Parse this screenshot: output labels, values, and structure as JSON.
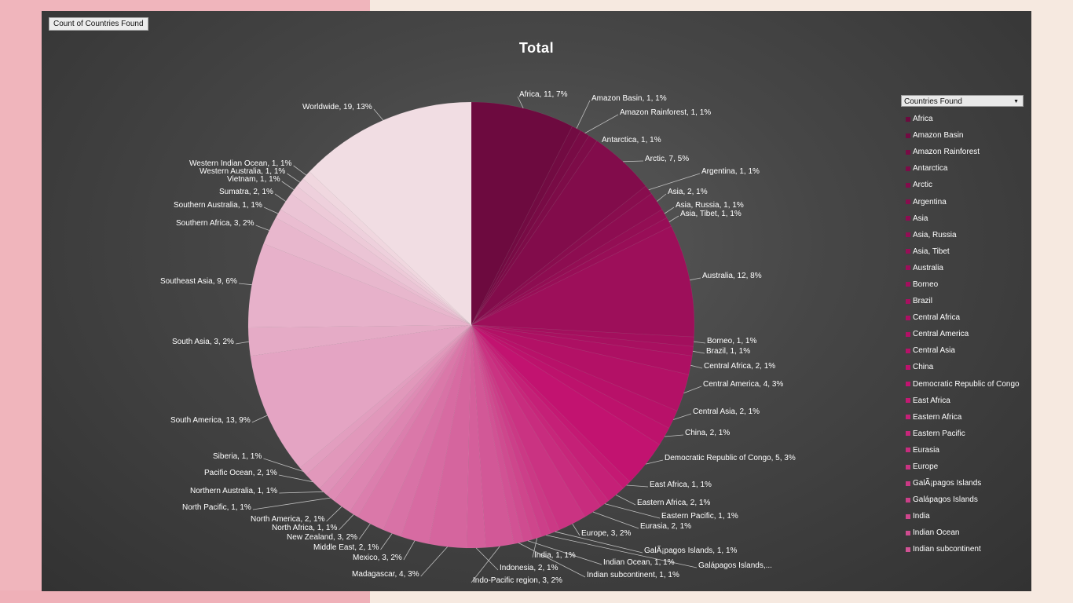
{
  "field_button_label": "Count of Countries Found",
  "legend_dropdown_label": "Countries Found",
  "colors": {
    "background_left": "#f0b5bc",
    "background_right": "#f6e9e0",
    "panel": "#474747",
    "slice_dark": "#6d0a3f",
    "slice_mid": "#c2126f",
    "slice_light": "#f1dde3"
  },
  "chart_data": {
    "type": "pie",
    "title": "Total",
    "legend_position": "right",
    "slices": [
      {
        "name": "Africa",
        "value": 11,
        "label": "Africa, 11, 7%"
      },
      {
        "name": "Amazon Basin",
        "value": 1,
        "label": "Amazon Basin, 1, 1%"
      },
      {
        "name": "Amazon Rainforest",
        "value": 1,
        "label": "Amazon Rainforest, 1, 1%"
      },
      {
        "name": "Antarctica",
        "value": 1,
        "label": "Antarctica, 1, 1%"
      },
      {
        "name": "Arctic",
        "value": 7,
        "label": "Arctic, 7, 5%"
      },
      {
        "name": "Argentina",
        "value": 1,
        "label": "Argentina, 1, 1%"
      },
      {
        "name": "Asia",
        "value": 2,
        "label": "Asia, 2, 1%"
      },
      {
        "name": "Asia, Russia",
        "value": 1,
        "label": "Asia, Russia, 1, 1%"
      },
      {
        "name": "Asia, Tibet",
        "value": 1,
        "label": "Asia, Tibet, 1, 1%"
      },
      {
        "name": "Australia",
        "value": 12,
        "label": "Australia, 12, 8%"
      },
      {
        "name": "Borneo",
        "value": 1,
        "label": "Borneo, 1, 1%"
      },
      {
        "name": "Brazil",
        "value": 1,
        "label": "Brazil, 1, 1%"
      },
      {
        "name": "Central Africa",
        "value": 2,
        "label": "Central Africa, 2, 1%"
      },
      {
        "name": "Central America",
        "value": 4,
        "label": "Central America, 4, 3%"
      },
      {
        "name": "Central Asia",
        "value": 2,
        "label": "Central Asia, 2, 1%"
      },
      {
        "name": "China",
        "value": 2,
        "label": "China, 2, 1%"
      },
      {
        "name": "Democratic Republic of Congo",
        "value": 5,
        "label": "Democratic Republic of Congo, 5, 3%"
      },
      {
        "name": "East Africa",
        "value": 1,
        "label": "East Africa, 1, 1%"
      },
      {
        "name": "Eastern Africa",
        "value": 2,
        "label": "Eastern Africa, 2, 1%"
      },
      {
        "name": "Eastern Pacific",
        "value": 1,
        "label": "Eastern Pacific, 1, 1%"
      },
      {
        "name": "Eurasia",
        "value": 2,
        "label": "Eurasia, 2, 1%"
      },
      {
        "name": "Europe",
        "value": 3,
        "label": "Europe, 3, 2%"
      },
      {
        "name": "GalÃ¡pagos Islands",
        "value": 1,
        "label": "GalÃ¡pagos Islands, 1, 1%"
      },
      {
        "name": "Galápagos Islands",
        "value": 1,
        "label": "Galápagos Islands,..."
      },
      {
        "name": "India",
        "value": 1,
        "label": "India, 1, 1%"
      },
      {
        "name": "Indian Ocean",
        "value": 1,
        "label": "Indian Ocean, 1, 1%"
      },
      {
        "name": "Indian subcontinent",
        "value": 1,
        "label": "Indian subcontinent, 1, 1%"
      },
      {
        "name": "Indo-Pacific region",
        "value": 3,
        "label": "Indo-Pacific region, 3, 2%"
      },
      {
        "name": "Indonesia",
        "value": 2,
        "label": "Indonesia, 2, 1%"
      },
      {
        "name": "Madagascar",
        "value": 4,
        "label": "Madagascar, 4, 3%"
      },
      {
        "name": "Mexico",
        "value": 3,
        "label": "Mexico, 3, 2%"
      },
      {
        "name": "Middle East",
        "value": 2,
        "label": "Middle East, 2, 1%"
      },
      {
        "name": "New Zealand",
        "value": 3,
        "label": "New Zealand, 3, 2%"
      },
      {
        "name": "North Africa",
        "value": 1,
        "label": "North Africa, 1, 1%"
      },
      {
        "name": "North America",
        "value": 2,
        "label": "North America, 2, 1%"
      },
      {
        "name": "North Pacific",
        "value": 1,
        "label": "North Pacific, 1, 1%"
      },
      {
        "name": "Northern Australia",
        "value": 1,
        "label": "Northern Australia, 1, 1%"
      },
      {
        "name": "Pacific Ocean",
        "value": 2,
        "label": "Pacific Ocean, 2, 1%"
      },
      {
        "name": "Siberia",
        "value": 1,
        "label": "Siberia, 1, 1%"
      },
      {
        "name": "South America",
        "value": 13,
        "label": "South America, 13, 9%"
      },
      {
        "name": "South Asia",
        "value": 3,
        "label": "South Asia, 3, 2%"
      },
      {
        "name": "Southeast Asia",
        "value": 9,
        "label": "Southeast Asia, 9, 6%"
      },
      {
        "name": "Southern Africa",
        "value": 3,
        "label": "Southern Africa, 3, 2%"
      },
      {
        "name": "Southern Australia",
        "value": 1,
        "label": "Southern Australia, 1, 1%"
      },
      {
        "name": "Sumatra",
        "value": 2,
        "label": "Sumatra, 2, 1%"
      },
      {
        "name": "Vietnam",
        "value": 1,
        "label": "Vietnam, 1, 1%"
      },
      {
        "name": "Western Australia",
        "value": 1,
        "label": "Western Australia, 1, 1%"
      },
      {
        "name": "Western Indian Ocean",
        "value": 1,
        "label": "Western Indian Ocean, 1, 1%"
      },
      {
        "name": "Worldwide",
        "value": 19,
        "label": "Worldwide, 19, 13%"
      }
    ],
    "legend_entries": [
      "Africa",
      "Amazon Basin",
      "Amazon Rainforest",
      "Antarctica",
      "Arctic",
      "Argentina",
      "Asia",
      "Asia, Russia",
      "Asia, Tibet",
      "Australia",
      "Borneo",
      "Brazil",
      "Central Africa",
      "Central America",
      "Central Asia",
      "China",
      "Democratic Republic of Congo",
      "East Africa",
      "Eastern Africa",
      "Eastern Pacific",
      "Eurasia",
      "Europe",
      "GalÃ¡pagos Islands",
      "Galápagos Islands",
      "India",
      "Indian Ocean",
      "Indian subcontinent"
    ]
  }
}
